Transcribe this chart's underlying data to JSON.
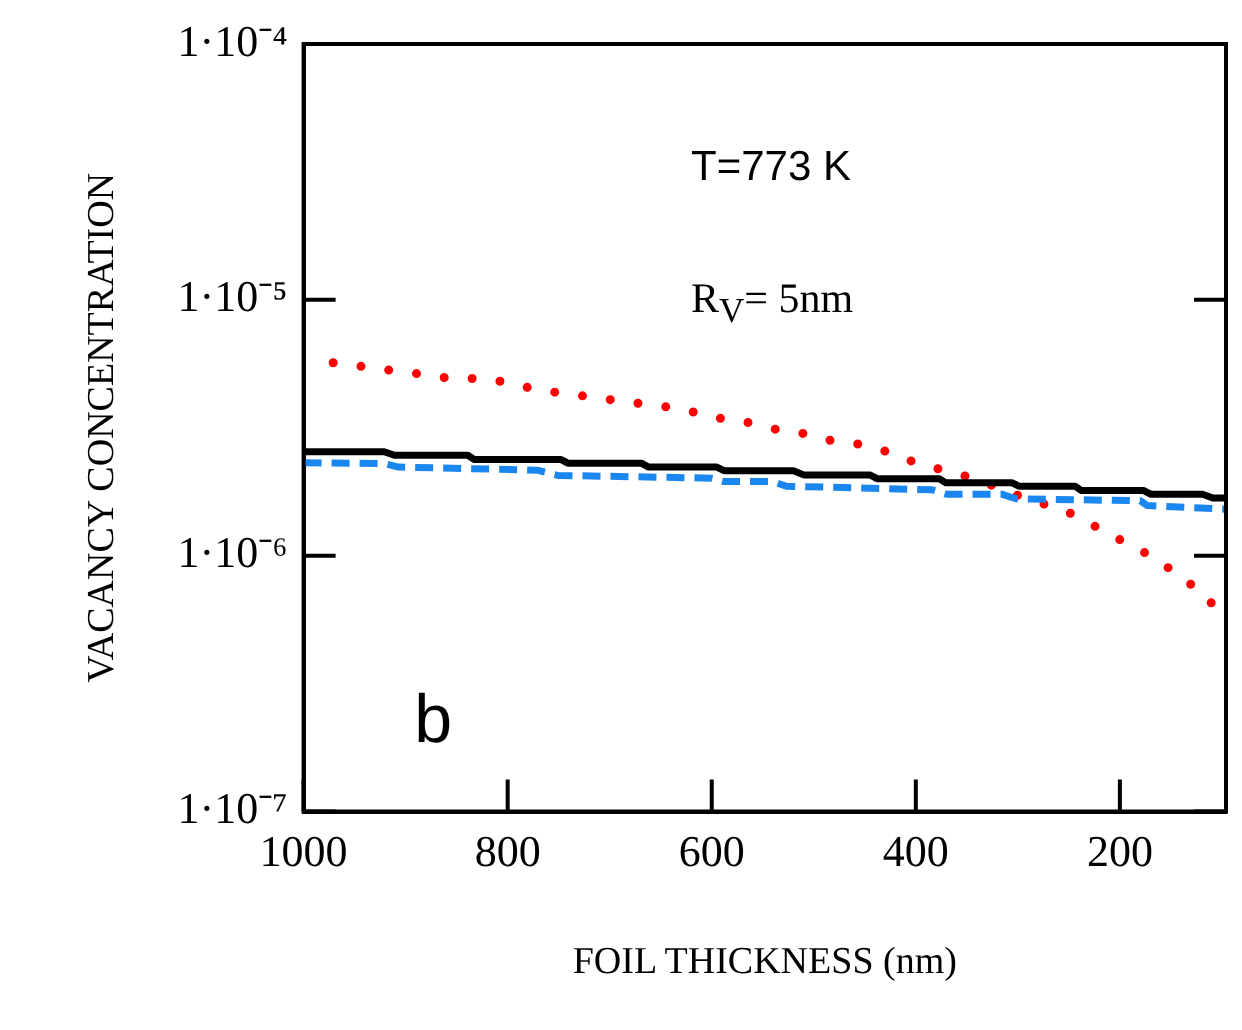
{
  "chart_data": {
    "type": "line",
    "xlabel": "FOIL THICKNESS (nm)",
    "ylabel": "VACANCY CONCENTRATION",
    "annotations": [
      "T=773 K",
      "R$_{V}$= 5nm",
      "b"
    ],
    "log": "y",
    "grid": false,
    "legend": false,
    "marker": "none",
    "xlim": [
      1000,
      96
    ],
    "xticks": [
      1000,
      800,
      600,
      400,
      200
    ],
    "ylim": [
      1e-07,
      0.0001
    ],
    "yticks": [
      {
        "value": 1e-07,
        "label": "1·10⁻⁷"
      },
      {
        "value": 1e-06,
        "label": "1·10⁻⁶"
      },
      {
        "value": 1e-05,
        "label": "1·10⁻⁵"
      },
      {
        "value": 0.0001,
        "label": "1·10⁻⁴"
      }
    ],
    "series": [
      {
        "color": "#000000",
        "line_style": "solid",
        "x": [
          1000,
          921,
          911,
          839,
          833,
          748,
          741,
          669,
          662,
          595,
          588,
          520,
          510,
          445,
          438,
          377,
          371,
          306,
          299,
          244,
          238,
          177,
          170,
          119,
          109,
          96
        ],
        "values": [
          2.55e-06,
          2.55e-06,
          2.47e-06,
          2.47e-06,
          2.38e-06,
          2.38e-06,
          2.3e-06,
          2.3e-06,
          2.22e-06,
          2.22e-06,
          2.15e-06,
          2.15e-06,
          2.07e-06,
          2.07e-06,
          2e-06,
          2e-06,
          1.93e-06,
          1.93e-06,
          1.87e-06,
          1.87e-06,
          1.8e-06,
          1.8e-06,
          1.74e-06,
          1.74e-06,
          1.68e-06,
          1.68e-06
        ]
      },
      {
        "color": "#1a87f0",
        "line_style": "dashed",
        "x": [
          1000,
          921,
          907,
          771,
          751,
          601,
          588,
          540,
          527,
          384,
          370,
          316,
          302,
          180,
          173,
          96
        ],
        "values": [
          2.31e-06,
          2.29e-06,
          2.22e-06,
          2.16e-06,
          2.06e-06,
          2.01e-06,
          1.95e-06,
          1.95e-06,
          1.87e-06,
          1.81e-06,
          1.74e-06,
          1.74e-06,
          1.67e-06,
          1.64e-06,
          1.57e-06,
          1.52e-06
        ]
      },
      {
        "color": "#ff0000",
        "line_style": "dotted",
        "x": [
          971,
          941,
          914,
          884,
          856,
          828,
          799,
          771,
          742,
          714,
          685,
          656,
          628,
          599,
          571,
          542,
          514,
          485,
          456,
          428,
          399,
          371,
          342,
          313,
          284,
          256,
          227,
          199,
          170,
          141,
          113,
          97
        ],
        "values": [
          5.68e-06,
          5.48e-06,
          5.3e-06,
          5.12e-06,
          4.93e-06,
          4.93e-06,
          4.76e-06,
          4.44e-06,
          4.3e-06,
          4.15e-06,
          4e-06,
          3.87e-06,
          3.74e-06,
          3.47e-06,
          3.37e-06,
          3.14e-06,
          3.03e-06,
          2.83e-06,
          2.73e-06,
          2.55e-06,
          2.3e-06,
          2.15e-06,
          2e-06,
          1.8e-06,
          1.63e-06,
          1.52e-06,
          1.32e-06,
          1.15e-06,
          1e-06,
          8.35e-07,
          6.8e-07,
          5.3e-07
        ]
      }
    ]
  }
}
